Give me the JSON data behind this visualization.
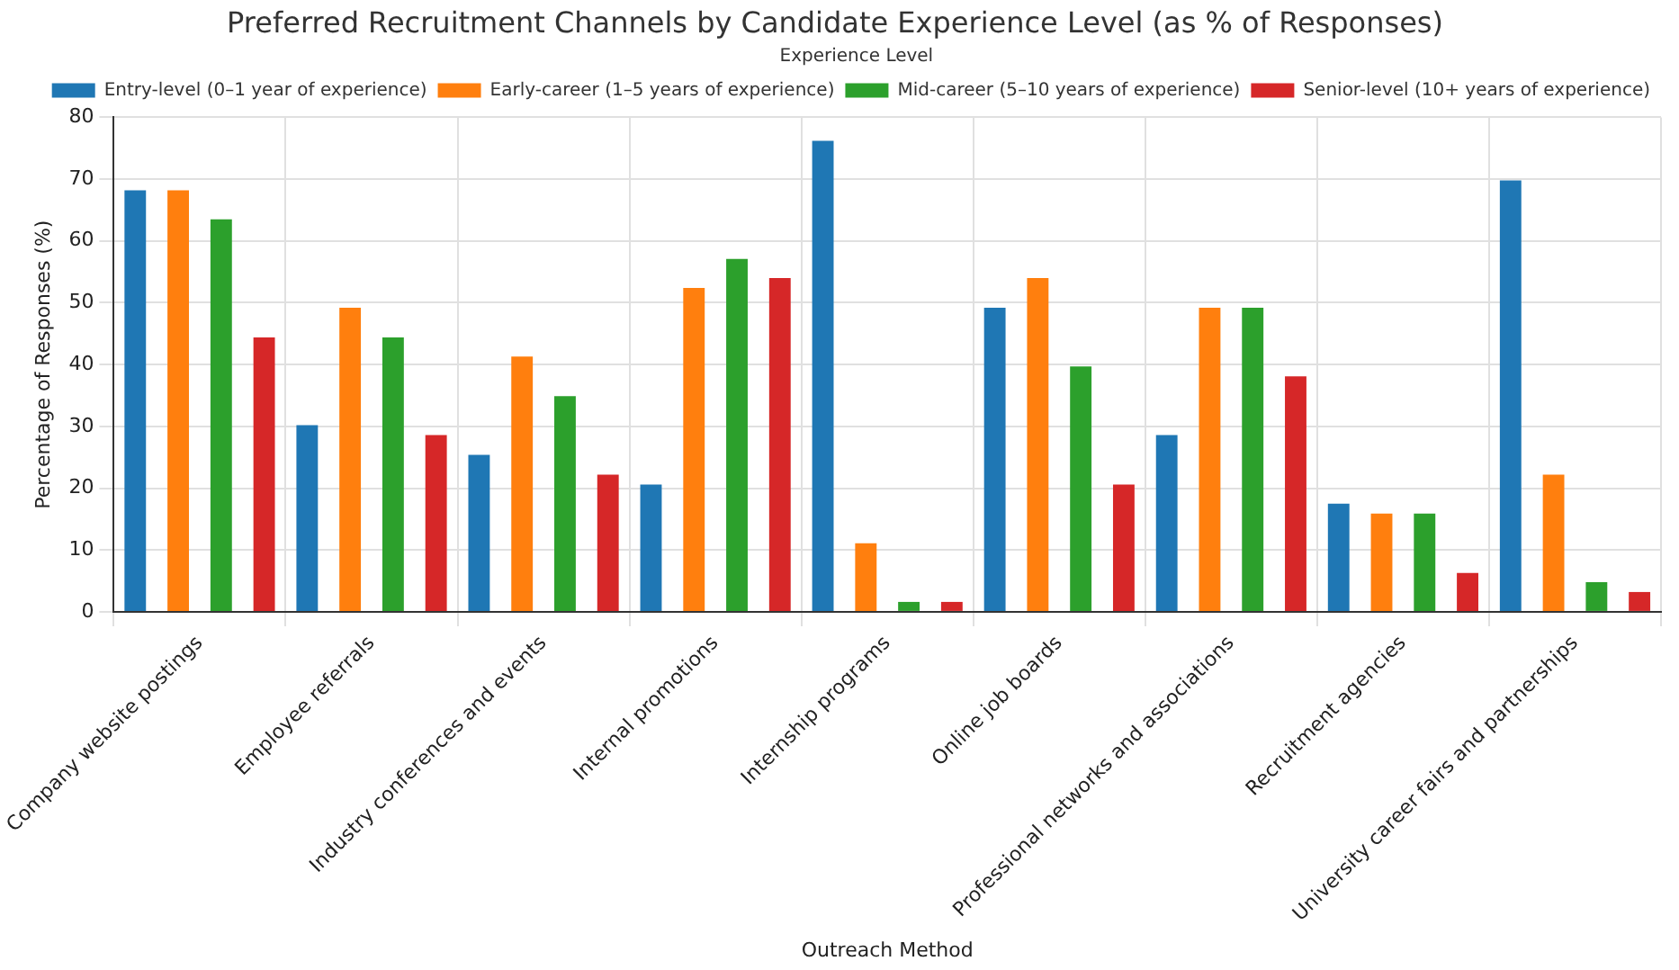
{
  "chart_data": {
    "type": "bar",
    "title": "Preferred Recruitment Channels by Candidate Experience Level (as % of Responses)",
    "xlabel": "Outreach Method",
    "ylabel": "Percentage of Responses (%)",
    "legend_title": "Experience Level",
    "categories": [
      "Company website postings",
      "Employee referrals",
      "Industry conferences and events",
      "Internal promotions",
      "Internship programs",
      "Online job boards",
      "Professional networks and associations",
      "Recruitment agencies",
      "University career fairs and partnerships"
    ],
    "series": [
      {
        "name": "Entry-level (0–1 year of experience)",
        "color": "#1f77b4",
        "values": [
          68.2,
          30.2,
          25.4,
          20.6,
          76.2,
          49.2,
          28.6,
          17.5,
          69.8
        ]
      },
      {
        "name": "Early-career (1–5 years of experience)",
        "color": "#ff7f0e",
        "values": [
          68.2,
          49.2,
          41.3,
          52.4,
          11.1,
          54.0,
          49.2,
          15.9,
          22.2
        ]
      },
      {
        "name": "Mid-career (5–10 years of experience)",
        "color": "#2ca02c",
        "values": [
          63.5,
          44.4,
          34.9,
          57.1,
          1.6,
          39.7,
          49.2,
          15.9,
          4.8
        ]
      },
      {
        "name": "Senior-level (10+ years of experience)",
        "color": "#d62728",
        "values": [
          44.4,
          28.6,
          22.2,
          54.0,
          1.6,
          20.6,
          38.1,
          6.3,
          3.2
        ]
      }
    ],
    "ylim": [
      0,
      80
    ],
    "yticks": [
      0,
      10,
      20,
      30,
      40,
      50,
      60,
      70,
      80
    ],
    "grid": true,
    "legend": "top right"
  }
}
